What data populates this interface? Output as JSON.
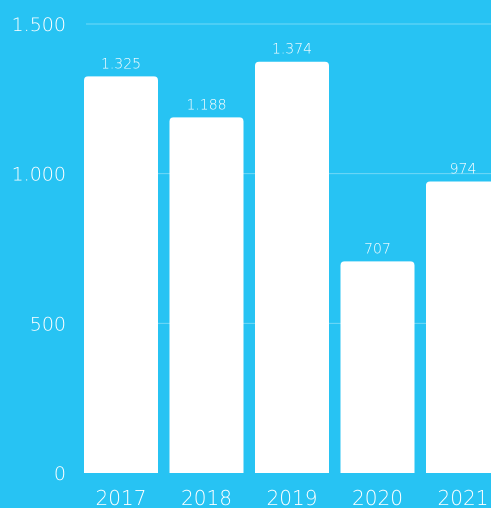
{
  "colors": {
    "background": "#27c3f3",
    "bar": "#ffffff",
    "text": "#ffffff",
    "grid": "#ffffff"
  },
  "chart_data": {
    "type": "bar",
    "categories": [
      "2017",
      "2018",
      "2019",
      "2020",
      "2021"
    ],
    "values": [
      1325,
      1188,
      1374,
      707,
      974
    ],
    "data_labels": [
      "1.325",
      "1.188",
      "1.374",
      "707",
      "974"
    ],
    "y_ticks": [
      0,
      500,
      1000,
      1500
    ],
    "y_tick_labels": [
      "0",
      "500",
      "1.000",
      "1.500"
    ],
    "ylim": [
      0,
      1500
    ],
    "grid": true,
    "legend": "none"
  }
}
